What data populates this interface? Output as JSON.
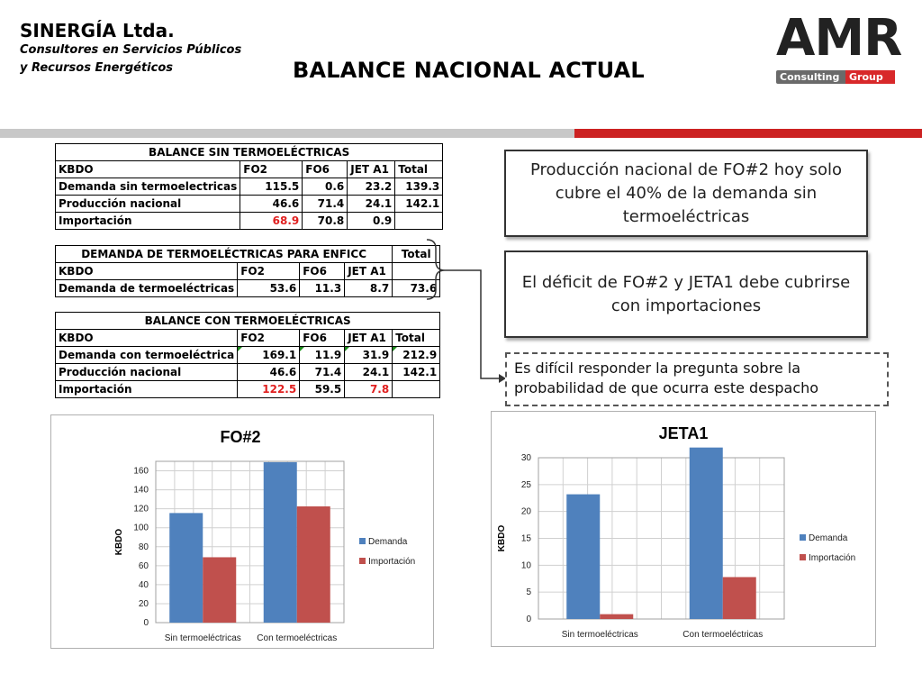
{
  "header": {
    "company": "SINERGÍA Ltda.",
    "subtitle_line1": "Consultores en Servicios Públicos",
    "subtitle_line2": "y Recursos Energéticos",
    "title": "BALANCE NACIONAL ACTUAL",
    "logo_text": "AMR",
    "logo_consulting": "Consulting",
    "logo_group": "Group"
  },
  "colors": {
    "demanda": "#4f81bd",
    "importacion": "#c0504d",
    "stripe_red": "#cc2222",
    "stripe_grey": "#c8c8c8"
  },
  "tables": {
    "sin_termo": {
      "title": "BALANCE SIN TERMOELÉCTRICAS",
      "headers": [
        "KBDO",
        "FO2",
        "FO6",
        "JET A1",
        "Total"
      ],
      "rows": [
        {
          "label": "Demanda sin termoelectricas",
          "values": [
            "115.5",
            "0.6",
            "23.2",
            "139.3"
          ]
        },
        {
          "label": "Producción nacional",
          "values": [
            "46.6",
            "71.4",
            "24.1",
            "142.1"
          ]
        },
        {
          "label": "Importación",
          "values": [
            "68.9",
            "70.8",
            "0.9",
            ""
          ]
        }
      ]
    },
    "demanda_termo": {
      "title": "DEMANDA DE TERMOELÉCTRICAS PARA ENFICC",
      "total_label": "Total",
      "headers": [
        "KBDO",
        "FO2",
        "FO6",
        "JET A1",
        ""
      ],
      "rows": [
        {
          "label": "Demanda de termoeléctricas",
          "values": [
            "53.6",
            "11.3",
            "8.7",
            "73.6"
          ]
        }
      ]
    },
    "con_termo": {
      "title": "BALANCE CON TERMOELÉCTRICAS",
      "headers": [
        "KBDO",
        "FO2",
        "FO6",
        "JET A1",
        "Total"
      ],
      "rows": [
        {
          "label": "Demanda con termoeléctrica",
          "values": [
            "169.1",
            "11.9",
            "31.9",
            "212.9"
          ]
        },
        {
          "label": "Producción nacional",
          "values": [
            "46.6",
            "71.4",
            "24.1",
            "142.1"
          ]
        },
        {
          "label": "Importación",
          "values": [
            "122.5",
            "59.5",
            "7.8",
            ""
          ]
        }
      ]
    }
  },
  "callouts": {
    "c1": "Producción nacional de FO#2 hoy solo cubre el 40% de la demanda sin termoeléctricas",
    "c2": "El déficit de FO#2 y JETA1 debe cubrirse con importaciones",
    "c3": "Es difícil responder la pregunta sobre la probabilidad de que ocurra este despacho"
  },
  "chart_data": [
    {
      "type": "bar",
      "title": "FO#2",
      "ylabel": "KBDO",
      "xlabel": "",
      "categories": [
        "Sin termoeléctricas",
        "Con termoeléctricas"
      ],
      "series": [
        {
          "name": "Demanda",
          "values": [
            115.5,
            169.1
          ]
        },
        {
          "name": "Importación",
          "values": [
            68.9,
            122.5
          ]
        }
      ],
      "ylim": [
        0,
        170
      ],
      "yticks": [
        0,
        20,
        40,
        60,
        80,
        100,
        120,
        140,
        160
      ],
      "grid": true,
      "legend": "right"
    },
    {
      "type": "bar",
      "title": "JETA1",
      "ylabel": "KBDO",
      "xlabel": "",
      "categories": [
        "Sin termoeléctricas",
        "Con termoeléctricas"
      ],
      "series": [
        {
          "name": "Demanda",
          "values": [
            23.2,
            31.9
          ]
        },
        {
          "name": "Importación",
          "values": [
            0.9,
            7.8
          ]
        }
      ],
      "ylim": [
        0,
        30
      ],
      "yticks": [
        0,
        5,
        10,
        15,
        20,
        25,
        30
      ],
      "grid": true,
      "legend": "right"
    }
  ]
}
